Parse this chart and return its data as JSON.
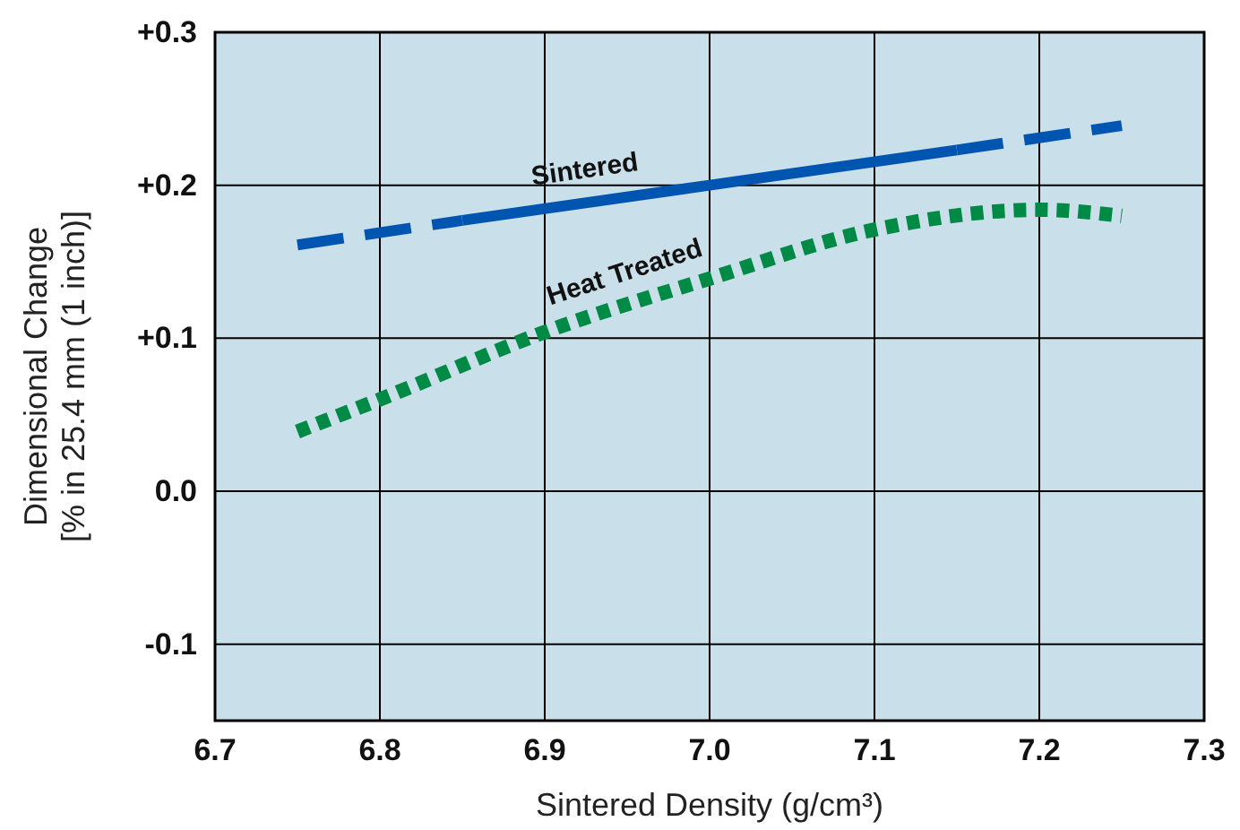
{
  "chart_data": {
    "type": "line",
    "xlabel": "Sintered Density (g/cm³)",
    "ylabel": "Dimensional Change\n[% in 25.4 mm (1 inch)]",
    "xlim": [
      6.7,
      7.3
    ],
    "xticks": [
      6.7,
      6.8,
      6.9,
      {
        "value": 7,
        "label": "7.0"
      },
      7.1,
      7.2,
      7.3
    ],
    "ylim": [
      -0.15,
      0.3
    ],
    "yticks": [
      {
        "value": -0.1,
        "label": "-0.1"
      },
      {
        "value": 0,
        "label": "0.0"
      },
      {
        "value": 0.1,
        "label": "+0.1"
      },
      {
        "value": 0.2,
        "label": "+0.2"
      },
      {
        "value": 0.3,
        "label": "+0.3"
      }
    ],
    "grid": true,
    "series": [
      {
        "color": "#0055b0",
        "line_style": "dashed",
        "x": [
          6.75,
          6.85
        ],
        "values": [
          0.161,
          0.177
        ]
      },
      {
        "name": "Sintered",
        "color": "#0055b0",
        "line_style": "solid",
        "x": [
          6.85,
          7.0,
          7.15
        ],
        "values": [
          0.177,
          0.2,
          0.223
        ]
      },
      {
        "color": "#0055b0",
        "line_style": "dashed",
        "x": [
          7.15,
          7.25
        ],
        "values": [
          0.223,
          0.239
        ]
      },
      {
        "name": "Heat Treated",
        "color": "#008a45",
        "line_style": "dotted",
        "x": [
          6.75,
          6.8,
          6.9,
          7.0,
          7.1,
          7.2,
          7.25
        ],
        "values": [
          0.039,
          0.06,
          0.104,
          0.139,
          0.171,
          0.184,
          0.18
        ]
      }
    ]
  }
}
